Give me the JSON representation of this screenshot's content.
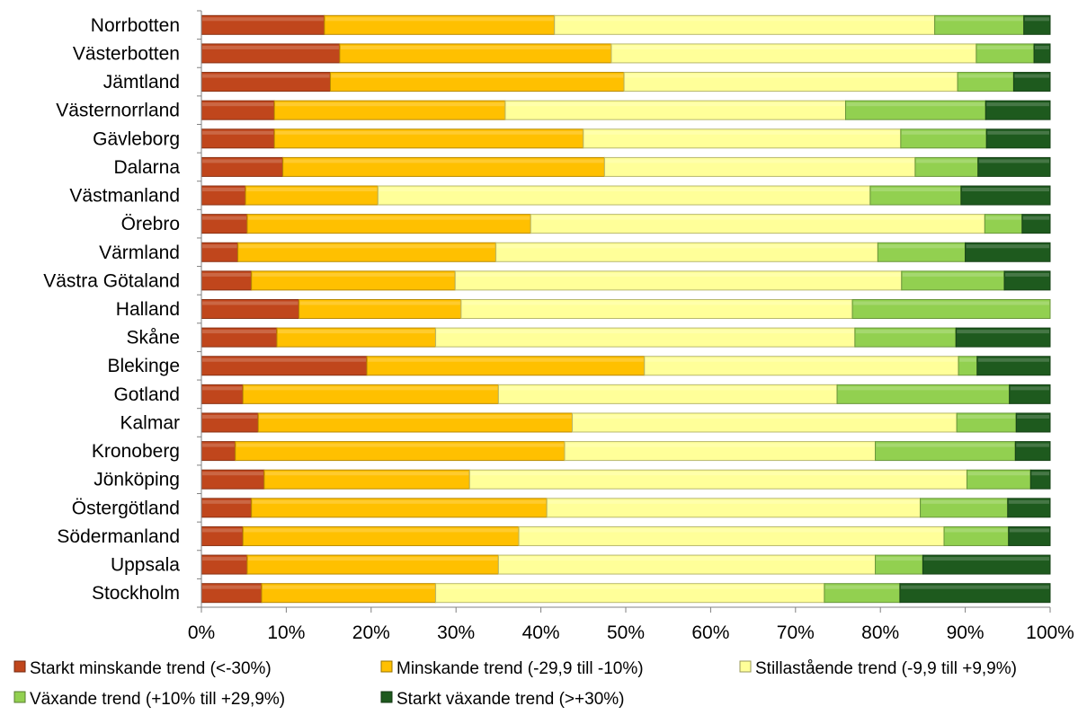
{
  "chart_data": {
    "type": "bar",
    "orientation": "horizontal",
    "stacked": "percent",
    "categories": [
      "Norrbotten",
      "Västerbotten",
      "Jämtland",
      "Västernorrland",
      "Gävleborg",
      "Dalarna",
      "Västmanland",
      "Örebro",
      "Värmland",
      "Västra Götaland",
      "Halland",
      "Skåne",
      "Blekinge",
      "Gotland",
      "Kalmar",
      "Kronoberg",
      "Jönköping",
      "Östergötland",
      "Södermanland",
      "Uppsala",
      "Stockholm"
    ],
    "series": [
      {
        "name": "Starkt minskande trend (<-30%)",
        "color": "#c0461c",
        "values": [
          14.5,
          16.3,
          15.2,
          8.6,
          8.6,
          9.6,
          5.2,
          5.4,
          4.3,
          5.9,
          11.5,
          8.9,
          19.5,
          4.9,
          6.7,
          4.0,
          7.4,
          5.9,
          4.9,
          5.4,
          7.1
        ]
      },
      {
        "name": "Minskande trend (-29,9 till -10%)",
        "color": "#ffc000",
        "values": [
          27.1,
          32.0,
          34.6,
          27.2,
          36.4,
          37.9,
          15.6,
          33.4,
          30.4,
          24.0,
          19.1,
          18.7,
          32.7,
          30.1,
          37.0,
          38.8,
          24.2,
          34.8,
          32.5,
          29.6,
          20.5
        ]
      },
      {
        "name": "Stillastående trend (-9,9 till +9,9%)",
        "color": "#ffff99",
        "values": [
          44.8,
          43.0,
          39.3,
          40.1,
          37.4,
          36.6,
          58.0,
          53.5,
          45.0,
          52.6,
          46.1,
          49.4,
          37.0,
          39.9,
          45.3,
          36.6,
          58.6,
          44.0,
          50.1,
          44.4,
          45.8
        ]
      },
      {
        "name": "Växande trend (+10% till +29,9%)",
        "color": "#92d050",
        "values": [
          10.5,
          6.8,
          6.6,
          16.5,
          10.1,
          7.4,
          10.7,
          4.4,
          10.3,
          12.1,
          23.3,
          11.9,
          2.2,
          20.3,
          7.0,
          16.5,
          7.5,
          10.3,
          7.6,
          5.6,
          8.9
        ]
      },
      {
        "name": "Starkt växande trend (>+30%)",
        "color": "#1e5a1e",
        "values": [
          3.1,
          1.9,
          4.3,
          7.6,
          7.5,
          8.5,
          10.5,
          3.3,
          10.0,
          5.4,
          0.0,
          11.1,
          8.6,
          4.8,
          4.0,
          4.1,
          2.3,
          5.0,
          4.9,
          15.0,
          17.7
        ]
      }
    ],
    "x_ticks": [
      "0%",
      "10%",
      "20%",
      "30%",
      "40%",
      "50%",
      "60%",
      "70%",
      "80%",
      "90%",
      "100%"
    ],
    "xlim": [
      0,
      100
    ],
    "title": "",
    "xlabel": "",
    "ylabel": "",
    "grid": false,
    "legend_position": "bottom"
  }
}
